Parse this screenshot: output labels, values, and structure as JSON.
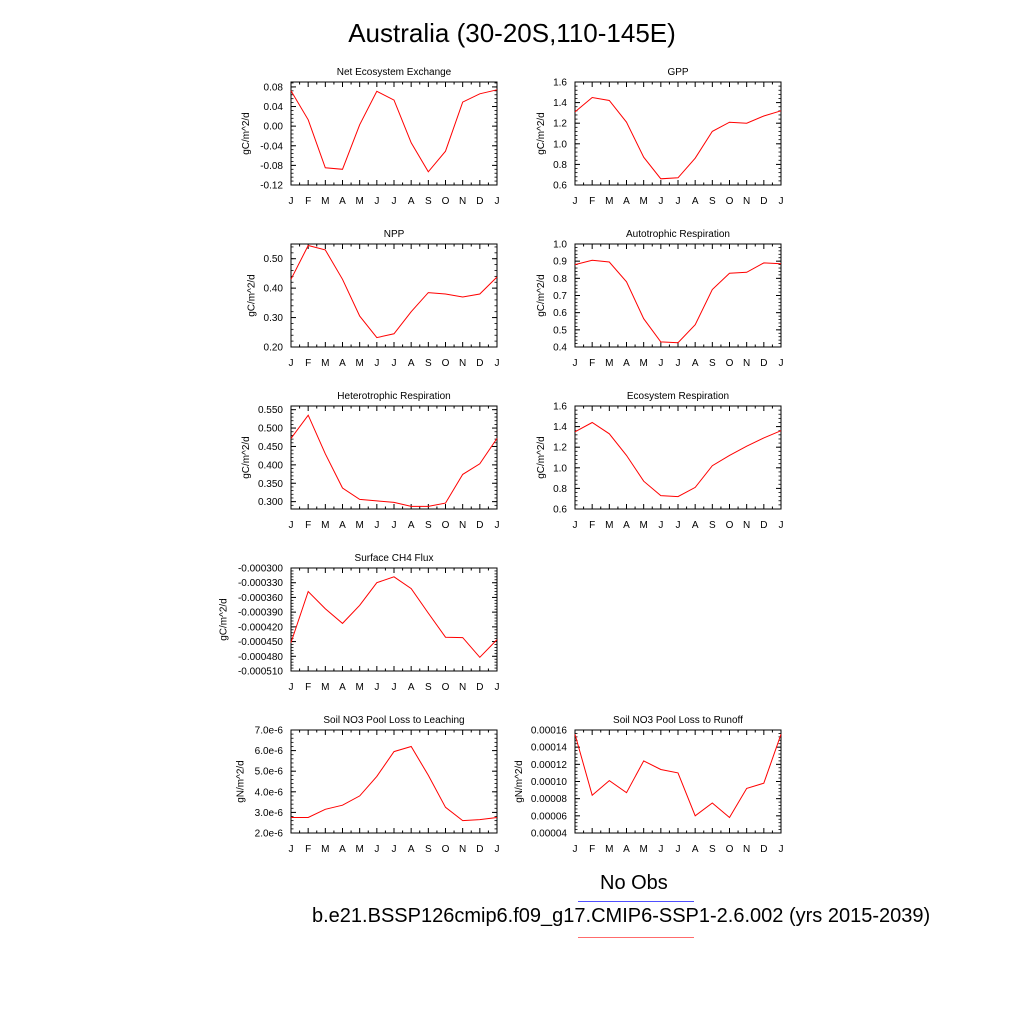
{
  "title": "Australia (30-20S,110-145E)",
  "legend": {
    "obs_label": "No Obs",
    "obs_color": "#4f4fff",
    "case_label": "b.e21.BSSP126cmip6.f09_g17.CMIP6-SSP1-2.6.002 (yrs 2015-2039)",
    "case_color": "#ff6b6b"
  },
  "line_color": "#ff0000",
  "chart_data": [
    {
      "type": "line",
      "title": "Net Ecosystem Exchange",
      "ylabel": "gC/m^2/d",
      "x": [
        "J",
        "F",
        "M",
        "A",
        "M",
        "J",
        "J",
        "A",
        "S",
        "O",
        "N",
        "D",
        "J"
      ],
      "ylim": [
        -0.12,
        0.09
      ],
      "yticks": [
        "-0.12",
        "-0.08",
        "-0.04",
        "0.00",
        "0.04",
        "0.08"
      ],
      "series": [
        {
          "values": [
            0.072,
            0.013,
            -0.085,
            -0.088,
            0.003,
            0.071,
            0.053,
            -0.034,
            -0.093,
            -0.051,
            0.049,
            0.066,
            0.074
          ]
        }
      ]
    },
    {
      "type": "line",
      "title": "GPP",
      "ylabel": "gC/m^2/d",
      "x": [
        "J",
        "F",
        "M",
        "A",
        "M",
        "J",
        "J",
        "A",
        "S",
        "O",
        "N",
        "D",
        "J"
      ],
      "ylim": [
        0.6,
        1.6
      ],
      "yticks": [
        "0.6",
        "0.8",
        "1.0",
        "1.2",
        "1.4",
        "1.6"
      ],
      "series": [
        {
          "values": [
            1.31,
            1.45,
            1.42,
            1.21,
            0.87,
            0.66,
            0.67,
            0.86,
            1.12,
            1.21,
            1.2,
            1.27,
            1.32
          ]
        }
      ]
    },
    {
      "type": "line",
      "title": "NPP",
      "ylabel": "gC/m^2/d",
      "x": [
        "J",
        "F",
        "M",
        "A",
        "M",
        "J",
        "J",
        "A",
        "S",
        "O",
        "N",
        "D",
        "J"
      ],
      "ylim": [
        0.2,
        0.55
      ],
      "yticks": [
        "0.20",
        "0.30",
        "0.40",
        "0.50"
      ],
      "series": [
        {
          "values": [
            0.43,
            0.545,
            0.53,
            0.43,
            0.305,
            0.232,
            0.245,
            0.32,
            0.385,
            0.38,
            0.37,
            0.38,
            0.438
          ]
        }
      ]
    },
    {
      "type": "line",
      "title": "Autotrophic Respiration",
      "ylabel": "gC/m^2/d",
      "x": [
        "J",
        "F",
        "M",
        "A",
        "M",
        "J",
        "J",
        "A",
        "S",
        "O",
        "N",
        "D",
        "J"
      ],
      "ylim": [
        0.4,
        1.0
      ],
      "yticks": [
        "0.4",
        "0.5",
        "0.6",
        "0.7",
        "0.8",
        "0.9",
        "1.0"
      ],
      "series": [
        {
          "values": [
            0.88,
            0.905,
            0.895,
            0.78,
            0.565,
            0.43,
            0.425,
            0.53,
            0.735,
            0.83,
            0.835,
            0.89,
            0.885
          ]
        }
      ]
    },
    {
      "type": "line",
      "title": "Heterotrophic Respiration",
      "ylabel": "gC/m^2/d",
      "x": [
        "J",
        "F",
        "M",
        "A",
        "M",
        "J",
        "J",
        "A",
        "S",
        "O",
        "N",
        "D",
        "J"
      ],
      "ylim": [
        0.28,
        0.56
      ],
      "yticks": [
        "0.300",
        "0.350",
        "0.400",
        "0.450",
        "0.500",
        "0.550"
      ],
      "series": [
        {
          "values": [
            0.472,
            0.535,
            0.43,
            0.337,
            0.306,
            0.302,
            0.298,
            0.287,
            0.287,
            0.296,
            0.374,
            0.403,
            0.472
          ]
        }
      ]
    },
    {
      "type": "line",
      "title": "Ecosystem Respiration",
      "ylabel": "gC/m^2/d",
      "x": [
        "J",
        "F",
        "M",
        "A",
        "M",
        "J",
        "J",
        "A",
        "S",
        "O",
        "N",
        "D",
        "J"
      ],
      "ylim": [
        0.6,
        1.6
      ],
      "yticks": [
        "0.6",
        "0.8",
        "1.0",
        "1.2",
        "1.4",
        "1.6"
      ],
      "series": [
        {
          "values": [
            1.35,
            1.44,
            1.33,
            1.12,
            0.87,
            0.73,
            0.72,
            0.81,
            1.02,
            1.12,
            1.21,
            1.29,
            1.36
          ]
        }
      ]
    },
    {
      "type": "line",
      "title": "Surface CH4 Flux",
      "ylabel": "gC/m^2/d",
      "x": [
        "J",
        "F",
        "M",
        "A",
        "M",
        "J",
        "J",
        "A",
        "S",
        "O",
        "N",
        "D",
        "J"
      ],
      "ylim": [
        -0.00051,
        -0.0003
      ],
      "yticks": [
        "-0.000510",
        "-0.000480",
        "-0.000450",
        "-0.000420",
        "-0.000390",
        "-0.000360",
        "-0.000330",
        "-0.000300"
      ],
      "series": [
        {
          "values": [
            -0.000452,
            -0.000348,
            -0.000383,
            -0.000413,
            -0.000376,
            -0.00033,
            -0.000318,
            -0.000342,
            -0.000392,
            -0.000441,
            -0.000442,
            -0.000482,
            -0.000446
          ]
        }
      ]
    },
    {
      "type": "line",
      "title": "Soil NO3 Pool Loss to Leaching",
      "ylabel": "gN/m^2/d",
      "x": [
        "J",
        "F",
        "M",
        "A",
        "M",
        "J",
        "J",
        "A",
        "S",
        "O",
        "N",
        "D",
        "J"
      ],
      "ylim": [
        2e-06,
        7e-06
      ],
      "yticks": [
        "2.0e-6",
        "3.0e-6",
        "4.0e-6",
        "5.0e-6",
        "6.0e-6",
        "7.0e-6"
      ],
      "series": [
        {
          "values": [
            2.75e-06,
            2.75e-06,
            3.15e-06,
            3.35e-06,
            3.8e-06,
            4.75e-06,
            5.95e-06,
            6.2e-06,
            4.8e-06,
            3.25e-06,
            2.6e-06,
            2.65e-06,
            2.75e-06
          ]
        }
      ]
    },
    {
      "type": "line",
      "title": "Soil NO3 Pool Loss to Runoff",
      "ylabel": "gN/m^2/d",
      "x": [
        "J",
        "F",
        "M",
        "A",
        "M",
        "J",
        "J",
        "A",
        "S",
        "O",
        "N",
        "D",
        "J"
      ],
      "ylim": [
        4e-05,
        0.00016
      ],
      "yticks": [
        "0.00004",
        "0.00006",
        "0.00008",
        "0.00010",
        "0.00012",
        "0.00014",
        "0.00016"
      ],
      "series": [
        {
          "values": [
            0.000155,
            8.4e-05,
            0.000101,
            8.7e-05,
            0.000124,
            0.000114,
            0.00011,
            6e-05,
            7.5e-05,
            5.8e-05,
            9.2e-05,
            9.8e-05,
            0.000155
          ]
        }
      ]
    }
  ]
}
